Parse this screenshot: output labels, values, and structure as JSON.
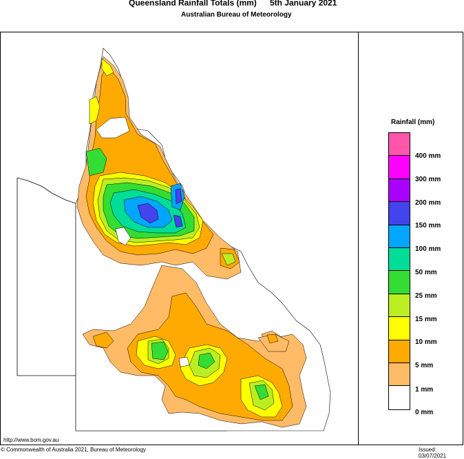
{
  "header": {
    "title": "Queensland Rainfall Totals (mm)",
    "date": "5th January 2021",
    "subtitle": "Australian Bureau of Meteorology"
  },
  "legend": {
    "title": "Rainfall (mm)",
    "bins": [
      {
        "label": "400 mm",
        "color": "#ff55aa"
      },
      {
        "label": "300 mm",
        "color": "#ff00ff"
      },
      {
        "label": "200 mm",
        "color": "#aa00ff"
      },
      {
        "label": "150 mm",
        "color": "#4444ee"
      },
      {
        "label": "100 mm",
        "color": "#00a6ff"
      },
      {
        "label": "50 mm",
        "color": "#00dd99"
      },
      {
        "label": "25 mm",
        "color": "#33dd33"
      },
      {
        "label": "15 mm",
        "color": "#bbee22"
      },
      {
        "label": "10 mm",
        "color": "#ffff00"
      },
      {
        "label": "5 mm",
        "color": "#ffaa00"
      },
      {
        "label": "1 mm",
        "color": "#ffbb66"
      },
      {
        "label": "0 mm",
        "color": "#ffffff"
      }
    ]
  },
  "footer": {
    "url": "http://www.bom.gov.au",
    "copyright": "© Commonwealth of Australia 2021, Bureau of Meteorology",
    "issued": "Issued: 03/07/2021"
  }
}
